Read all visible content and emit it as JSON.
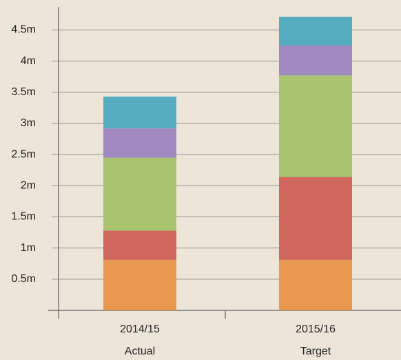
{
  "chart_data": {
    "type": "stacked_bar",
    "categories": [
      [
        "2014/15",
        "Actual"
      ],
      [
        "2015/16",
        "Target"
      ]
    ],
    "series": [
      {
        "color": "#e8994f",
        "values": [
          0.81,
          0.81
        ]
      },
      {
        "color": "#cf675c",
        "values": [
          0.47,
          1.33
        ]
      },
      {
        "color": "#a8c46e",
        "values": [
          1.17,
          1.63
        ]
      },
      {
        "color": "#a089c0",
        "values": [
          0.47,
          0.48
        ]
      },
      {
        "color": "#55abbf",
        "values": [
          0.51,
          0.46
        ]
      }
    ],
    "ylim": [
      0,
      4.87
    ],
    "yticks": [
      {
        "value": 0.5,
        "label": "0.5m"
      },
      {
        "value": 1,
        "label": "1m"
      },
      {
        "value": 1.5,
        "label": "1.5m"
      },
      {
        "value": 2,
        "label": "2m"
      },
      {
        "value": 2.5,
        "label": "2.5m"
      },
      {
        "value": 3,
        "label": "3m"
      },
      {
        "value": 3.5,
        "label": "3.5m"
      },
      {
        "value": 4,
        "label": "4m"
      },
      {
        "value": 4.5,
        "label": "4.5m"
      }
    ],
    "grid": true
  }
}
